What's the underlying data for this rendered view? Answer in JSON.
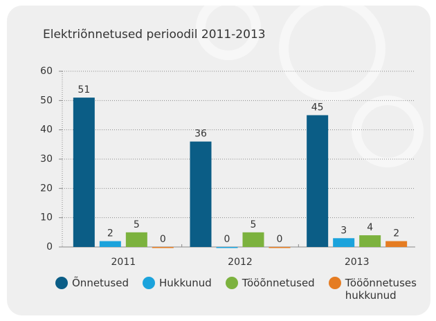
{
  "chart_data": {
    "type": "bar",
    "title": "Elektriõnnetused perioodil 2011-2013",
    "categories": [
      "2011",
      "2012",
      "2013"
    ],
    "series": [
      {
        "name": "Õnnetused",
        "color": "#0b5d86",
        "values": [
          51,
          36,
          45
        ]
      },
      {
        "name": "Hukkunud",
        "color": "#1ba3dc",
        "values": [
          2,
          0,
          3
        ]
      },
      {
        "name": "Tööõnnetused",
        "color": "#7cb23e",
        "values": [
          5,
          5,
          4
        ]
      },
      {
        "name": "Tööõnnetuses hukkunud",
        "color": "#e57c22",
        "values": [
          0,
          0,
          2
        ]
      }
    ],
    "ylim": [
      0,
      60
    ],
    "yticks": [
      0,
      10,
      20,
      30,
      40,
      50,
      60
    ],
    "grid": true
  }
}
